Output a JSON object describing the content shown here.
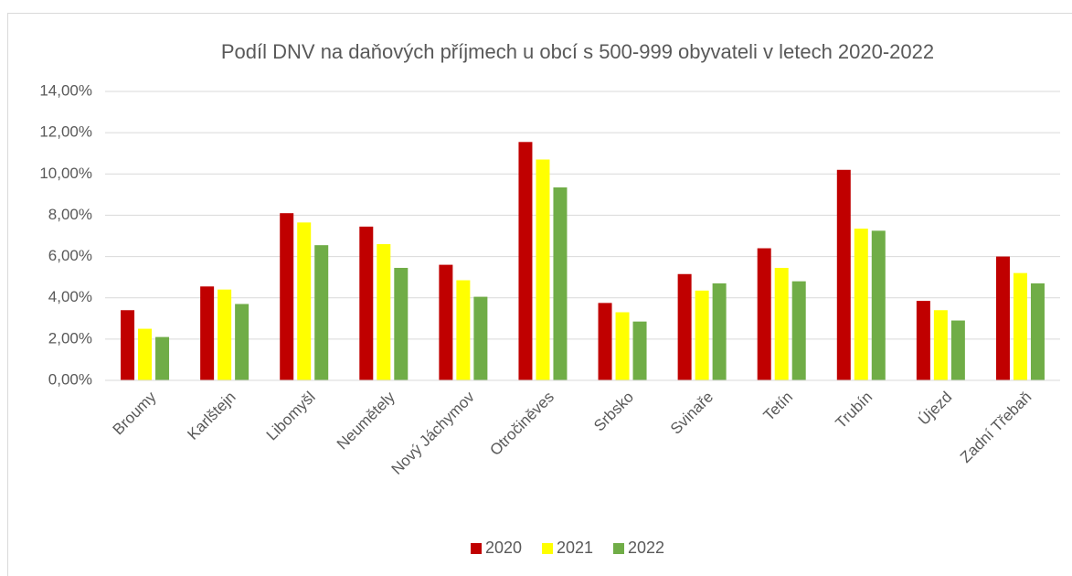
{
  "chart_data": {
    "type": "bar",
    "title": "Podíl DNV na daňových příjmech u obcí s 500-999 obyvateli v letech 2020-2022",
    "categories": [
      "Broumy",
      "Karlštejn",
      "Libomyšl",
      "Neumětely",
      "Nový Jáchymov",
      "Otročiněves",
      "Srbsko",
      "Svinaře",
      "Tetín",
      "Trubín",
      "Újezd",
      "Zadní Třebaň"
    ],
    "series": [
      {
        "name": "2020",
        "color": "#c00000",
        "values": [
          3.4,
          4.55,
          8.1,
          7.45,
          5.6,
          11.55,
          3.75,
          5.15,
          6.4,
          10.2,
          3.85,
          6.0
        ]
      },
      {
        "name": "2021",
        "color": "#ffff00",
        "values": [
          2.5,
          4.4,
          7.65,
          6.6,
          4.85,
          10.7,
          3.3,
          4.35,
          5.45,
          7.35,
          3.4,
          5.2
        ]
      },
      {
        "name": "2022",
        "color": "#70ad47",
        "values": [
          2.1,
          3.7,
          6.55,
          5.45,
          4.05,
          9.35,
          2.85,
          4.7,
          4.8,
          7.25,
          2.9,
          4.7
        ]
      }
    ],
    "ylim": [
      0,
      14
    ],
    "yticks": [
      {
        "value": 0,
        "label": "0,00%"
      },
      {
        "value": 2,
        "label": "2,00%"
      },
      {
        "value": 4,
        "label": "4,00%"
      },
      {
        "value": 6,
        "label": "6,00%"
      },
      {
        "value": 8,
        "label": "8,00%"
      },
      {
        "value": 10,
        "label": "10,00%"
      },
      {
        "value": 12,
        "label": "12,00%"
      },
      {
        "value": 14,
        "label": "14,00%"
      }
    ],
    "grid": true,
    "legend": "bottom"
  }
}
